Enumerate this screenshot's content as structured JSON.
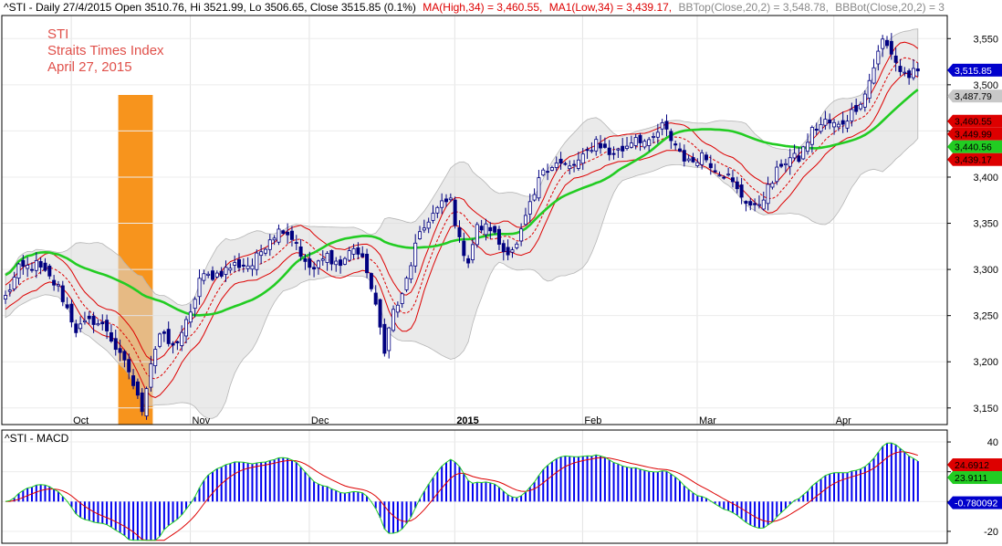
{
  "chart_data": [
    {
      "type": "candlestick",
      "header": {
        "prefix": "^STI - Daily 27/4/2015 Open 3510.76, Hi 3521.99, Lo 3506.65, Close 3515.85 (0.1%)",
        "ma_high": "MA(High,34) = 3,460.55,",
        "ma_low": "MA1(Low,34) = 3,439.17,",
        "bbtop": "BBTop(Close,20,2) = 3,548.78,",
        "bbbot": "BBBot(Close,20,2) = 3"
      },
      "annotation": [
        "STI",
        "Straits Times Index",
        "April 27, 2015"
      ],
      "highlight": {
        "from_index": 26,
        "to_index": 33,
        "color": "#f7941d"
      },
      "x_labels": [
        {
          "index": 17,
          "label": "Oct",
          "bold": false
        },
        {
          "index": 44,
          "label": "Nov",
          "bold": false
        },
        {
          "index": 71,
          "label": "Dec",
          "bold": false
        },
        {
          "index": 104,
          "label": "2015",
          "bold": true
        },
        {
          "index": 133,
          "label": "Feb",
          "bold": false
        },
        {
          "index": 159,
          "label": "Mar",
          "bold": false
        },
        {
          "index": 190,
          "label": "Apr",
          "bold": false
        }
      ],
      "y_ticks": [
        3150,
        3200,
        3250,
        3300,
        3350,
        3400,
        3450,
        3500,
        3550
      ],
      "ylim": [
        3132,
        3575
      ],
      "price_labels": [
        {
          "value": 3515.85,
          "text": "3,515.85",
          "bg": "#0000cc",
          "fg": "#ffffff"
        },
        {
          "value": 3487.79,
          "text": "3,487.79",
          "bg": "#c8c8c8",
          "fg": "#000000"
        },
        {
          "value": 3460.55,
          "text": "3,460.55",
          "bg": "#dd0000",
          "fg": "#000000"
        },
        {
          "value": 3449.99,
          "text": "3,449.99",
          "bg": "#dd0000",
          "fg": "#000000"
        },
        {
          "value": 3440.56,
          "text": "3,440.56",
          "bg": "#22cc22",
          "fg": "#000000"
        },
        {
          "value": 3439.17,
          "text": "3,439.17",
          "bg": "#dd0000",
          "fg": "#000000"
        }
      ],
      "key_closes": [
        [
          0,
          3270
        ],
        [
          3,
          3300
        ],
        [
          7,
          3305
        ],
        [
          12,
          3280
        ],
        [
          16,
          3235
        ],
        [
          20,
          3245
        ],
        [
          23,
          3235
        ],
        [
          26,
          3205
        ],
        [
          28,
          3190
        ],
        [
          30,
          3160
        ],
        [
          31,
          3150
        ],
        [
          33,
          3200
        ],
        [
          35,
          3230
        ],
        [
          38,
          3215
        ],
        [
          42,
          3250
        ],
        [
          44,
          3290
        ],
        [
          48,
          3295
        ],
        [
          52,
          3305
        ],
        [
          56,
          3305
        ],
        [
          60,
          3335
        ],
        [
          63,
          3345
        ],
        [
          66,
          3330
        ],
        [
          68,
          3305
        ],
        [
          70,
          3300
        ],
        [
          73,
          3315
        ],
        [
          76,
          3305
        ],
        [
          79,
          3325
        ],
        [
          82,
          3300
        ],
        [
          86,
          3215
        ],
        [
          88,
          3255
        ],
        [
          90,
          3270
        ],
        [
          93,
          3325
        ],
        [
          96,
          3355
        ],
        [
          99,
          3370
        ],
        [
          101,
          3375
        ],
        [
          103,
          3330
        ],
        [
          105,
          3310
        ],
        [
          107,
          3345
        ],
        [
          110,
          3345
        ],
        [
          113,
          3320
        ],
        [
          116,
          3325
        ],
        [
          118,
          3355
        ],
        [
          120,
          3380
        ],
        [
          122,
          3410
        ],
        [
          125,
          3415
        ],
        [
          128,
          3410
        ],
        [
          131,
          3420
        ],
        [
          134,
          3440
        ],
        [
          137,
          3425
        ],
        [
          140,
          3430
        ],
        [
          143,
          3445
        ],
        [
          146,
          3435
        ],
        [
          149,
          3455
        ],
        [
          152,
          3435
        ],
        [
          155,
          3415
        ],
        [
          158,
          3425
        ],
        [
          161,
          3410
        ],
        [
          164,
          3400
        ],
        [
          166,
          3385
        ],
        [
          168,
          3375
        ],
        [
          170,
          3365
        ],
        [
          172,
          3380
        ],
        [
          174,
          3395
        ],
        [
          176,
          3415
        ],
        [
          178,
          3420
        ],
        [
          180,
          3420
        ],
        [
          183,
          3450
        ],
        [
          186,
          3460
        ],
        [
          189,
          3455
        ],
        [
          192,
          3470
        ],
        [
          195,
          3490
        ],
        [
          197,
          3520
        ],
        [
          199,
          3548
        ],
        [
          201,
          3535
        ],
        [
          203,
          3515
        ],
        [
          205,
          3510
        ],
        [
          207,
          3515
        ]
      ]
    },
    {
      "type": "macd",
      "title": "^STI - MACD",
      "y_ticks": [
        -20,
        0,
        20,
        40
      ],
      "ylim": [
        -28,
        48
      ],
      "value_labels": [
        {
          "value": 24.6912,
          "text": "24.6912",
          "bg": "#dd0000",
          "fg": "#000000"
        },
        {
          "value": 23.9111,
          "text": "23.9111",
          "bg": "#22cc22",
          "fg": "#000000"
        },
        {
          "value": -0.780092,
          "text": "-0.780092",
          "bg": "#0000cc",
          "fg": "#ffffff"
        }
      ],
      "colors": {
        "histogram": "#0000ee",
        "macd": "#22cc22",
        "signal": "#dd0000"
      }
    }
  ]
}
